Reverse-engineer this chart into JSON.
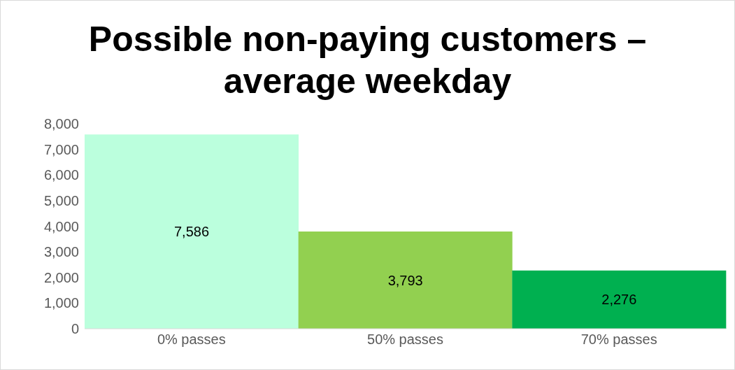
{
  "chart_data": {
    "type": "bar",
    "title": "Possible non-paying customers – average weekday",
    "categories": [
      "0% passes",
      "50% passes",
      "70% passes"
    ],
    "values": [
      7586,
      3793,
      2276
    ],
    "colors": [
      "#bbffdd",
      "#92d050",
      "#00b050"
    ],
    "ylim": [
      0,
      8000
    ],
    "yticks": [
      0,
      {
        "value": 1000,
        "label": "1,000"
      },
      {
        "value": 2000,
        "label": "2,000"
      },
      {
        "value": 3000,
        "label": "3,000"
      },
      {
        "value": 4000,
        "label": "4,000"
      },
      {
        "value": 5000,
        "label": "5,000"
      },
      {
        "value": 6000,
        "label": "6,000"
      },
      {
        "value": 7000,
        "label": "7,000"
      },
      {
        "value": 8000,
        "label": "8,000"
      }
    ],
    "value_labels": [
      "7,586",
      "3,793",
      "2,276"
    ],
    "grid": false,
    "legend": false
  }
}
